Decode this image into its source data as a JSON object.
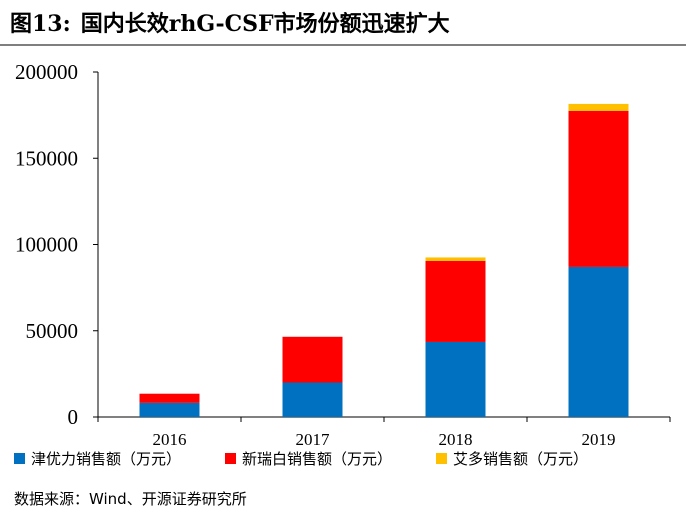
{
  "figure": {
    "number": "图13:",
    "title": "国内长效rhG-CSF市场份额迅速扩大"
  },
  "chart_data": {
    "type": "bar",
    "stacked": true,
    "categories": [
      "2016",
      "2017",
      "2018",
      "2019"
    ],
    "series": [
      {
        "name": "津优力销售额（万元）",
        "color": "#0070c0",
        "values": [
          8200,
          20000,
          43500,
          87000
        ]
      },
      {
        "name": "新瑞白销售额（万元）",
        "color": "#ff0000",
        "values": [
          5300,
          26500,
          47000,
          90500
        ]
      },
      {
        "name": "艾多销售额（万元）",
        "color": "#ffc000",
        "values": [
          0,
          0,
          2000,
          4000
        ]
      }
    ],
    "yticks": [
      0,
      50000,
      100000,
      150000,
      200000
    ],
    "ylim": [
      0,
      200000
    ],
    "xlabel": "",
    "ylabel": "",
    "legend_position": "bottom"
  },
  "source": "数据来源：Wind、开源证券研究所"
}
